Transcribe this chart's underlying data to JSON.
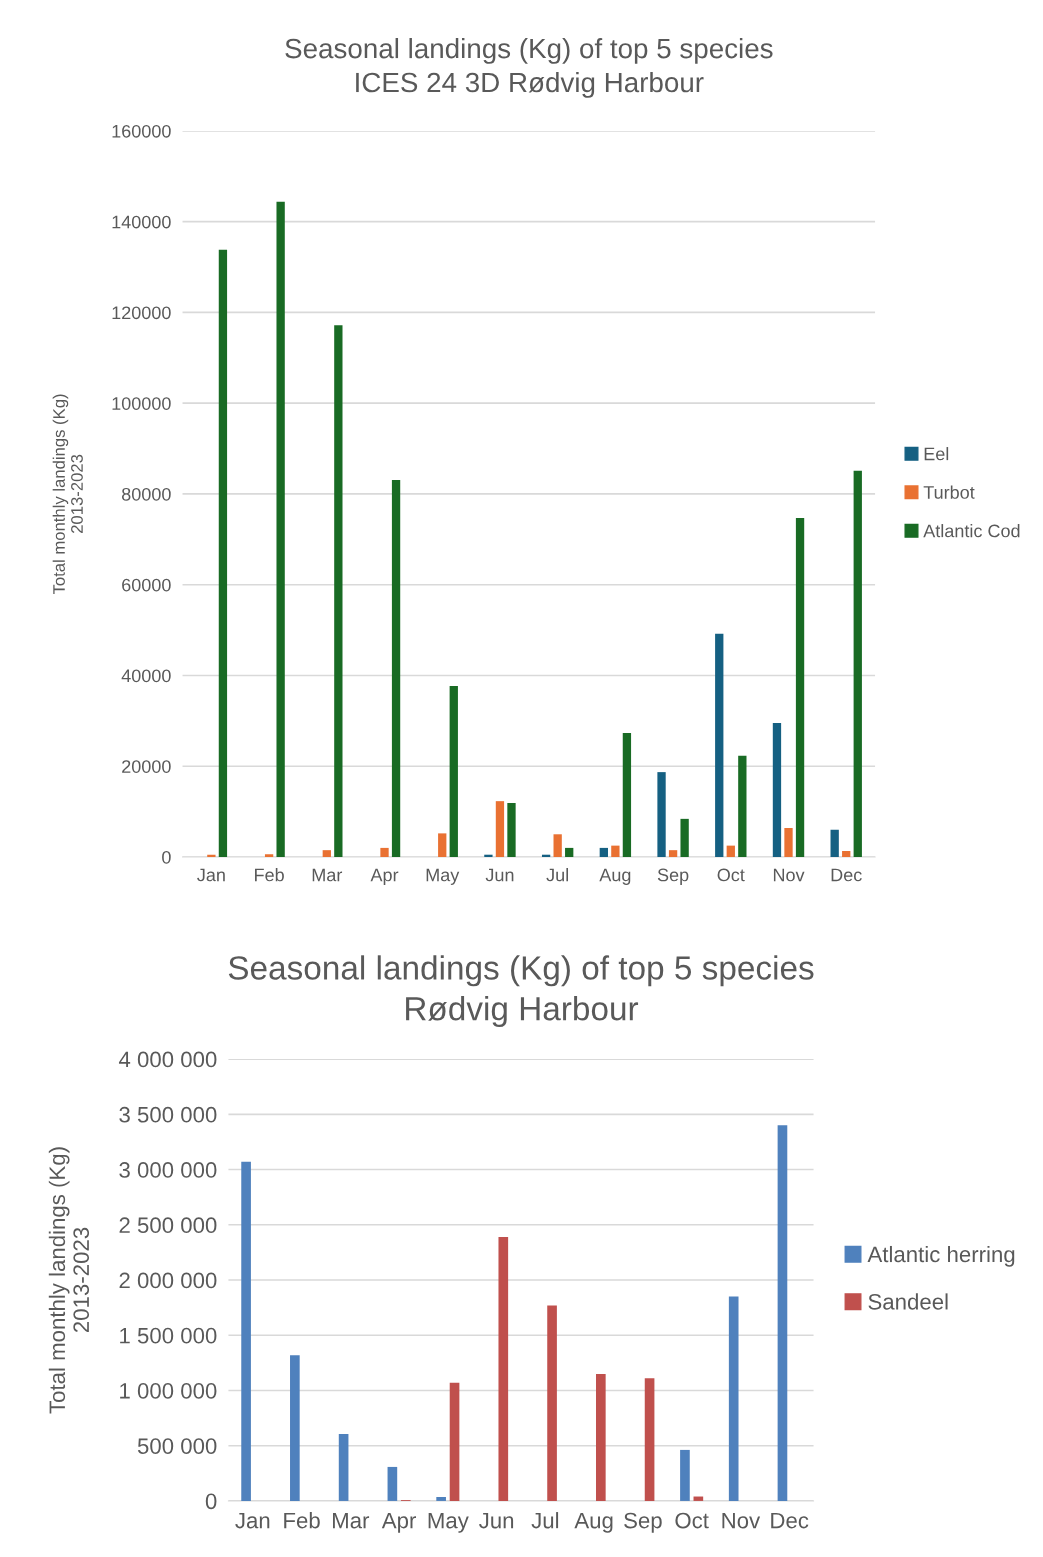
{
  "chart_data": [
    {
      "type": "bar",
      "title": "Seasonal landings (Kg) of top 5 species\nICES 24 3D Rødvig Harbour",
      "ylabel": "Total monthly landings (Kg)\n2013-2023",
      "categories": [
        "Jan",
        "Feb",
        "Mar",
        "Apr",
        "May",
        "Jun",
        "Jul",
        "Aug",
        "Sep",
        "Oct",
        "Nov",
        "Dec"
      ],
      "series": [
        {
          "name": "Eel",
          "color": "#156082",
          "values": [
            0,
            0,
            0,
            0,
            0,
            500,
            500,
            2000,
            18700,
            49200,
            29500,
            6000
          ]
        },
        {
          "name": "Turbot",
          "color": "#e97132",
          "values": [
            500,
            600,
            1500,
            2000,
            5200,
            12300,
            5000,
            2500,
            1500,
            2500,
            6400,
            1300
          ]
        },
        {
          "name": "Atlantic Cod",
          "color": "#196b24",
          "values": [
            133800,
            144400,
            117200,
            83100,
            37700,
            11900,
            2000,
            27300,
            8400,
            22300,
            74700,
            85100
          ]
        }
      ],
      "ylim": [
        0,
        160000
      ],
      "yticks": [
        0,
        20000,
        40000,
        60000,
        80000,
        100000,
        120000,
        140000,
        160000
      ],
      "grid": "y",
      "legend": "right"
    },
    {
      "type": "bar",
      "title": "Seasonal landings (Kg) of top 5 species\nRødvig Harbour",
      "ylabel": "Total monthly landings (Kg)\n2013-2023",
      "categories": [
        "Jan",
        "Feb",
        "Mar",
        "Apr",
        "May",
        "Jun",
        "Jul",
        "Aug",
        "Sep",
        "Oct",
        "Nov",
        "Dec"
      ],
      "series": [
        {
          "name": "Atlantic herring",
          "color": "#4f81bd",
          "values": [
            3070000,
            1320000,
            606000,
            308000,
            36000,
            0,
            0,
            0,
            0,
            462000,
            1850000,
            3400000
          ]
        },
        {
          "name": "Sandeel",
          "color": "#c0504d",
          "values": [
            0,
            0,
            0,
            8000,
            1070000,
            2390000,
            1770000,
            1150000,
            1110000,
            40000,
            0,
            0
          ]
        }
      ],
      "ylim": [
        0,
        4000000
      ],
      "yticks": [
        0,
        {
          "value": 500000,
          "label": "500 000"
        },
        {
          "value": 1000000,
          "label": "1 000 000"
        },
        {
          "value": 1500000,
          "label": "1 500 000"
        },
        {
          "value": 2000000,
          "label": "2 000 000"
        },
        {
          "value": 2500000,
          "label": "2 500 000"
        },
        {
          "value": 3000000,
          "label": "3 000 000"
        },
        {
          "value": 3500000,
          "label": "3 500 000"
        },
        {
          "value": 4000000,
          "label": "4 000 000"
        }
      ],
      "grid": "y",
      "legend": "right"
    }
  ]
}
